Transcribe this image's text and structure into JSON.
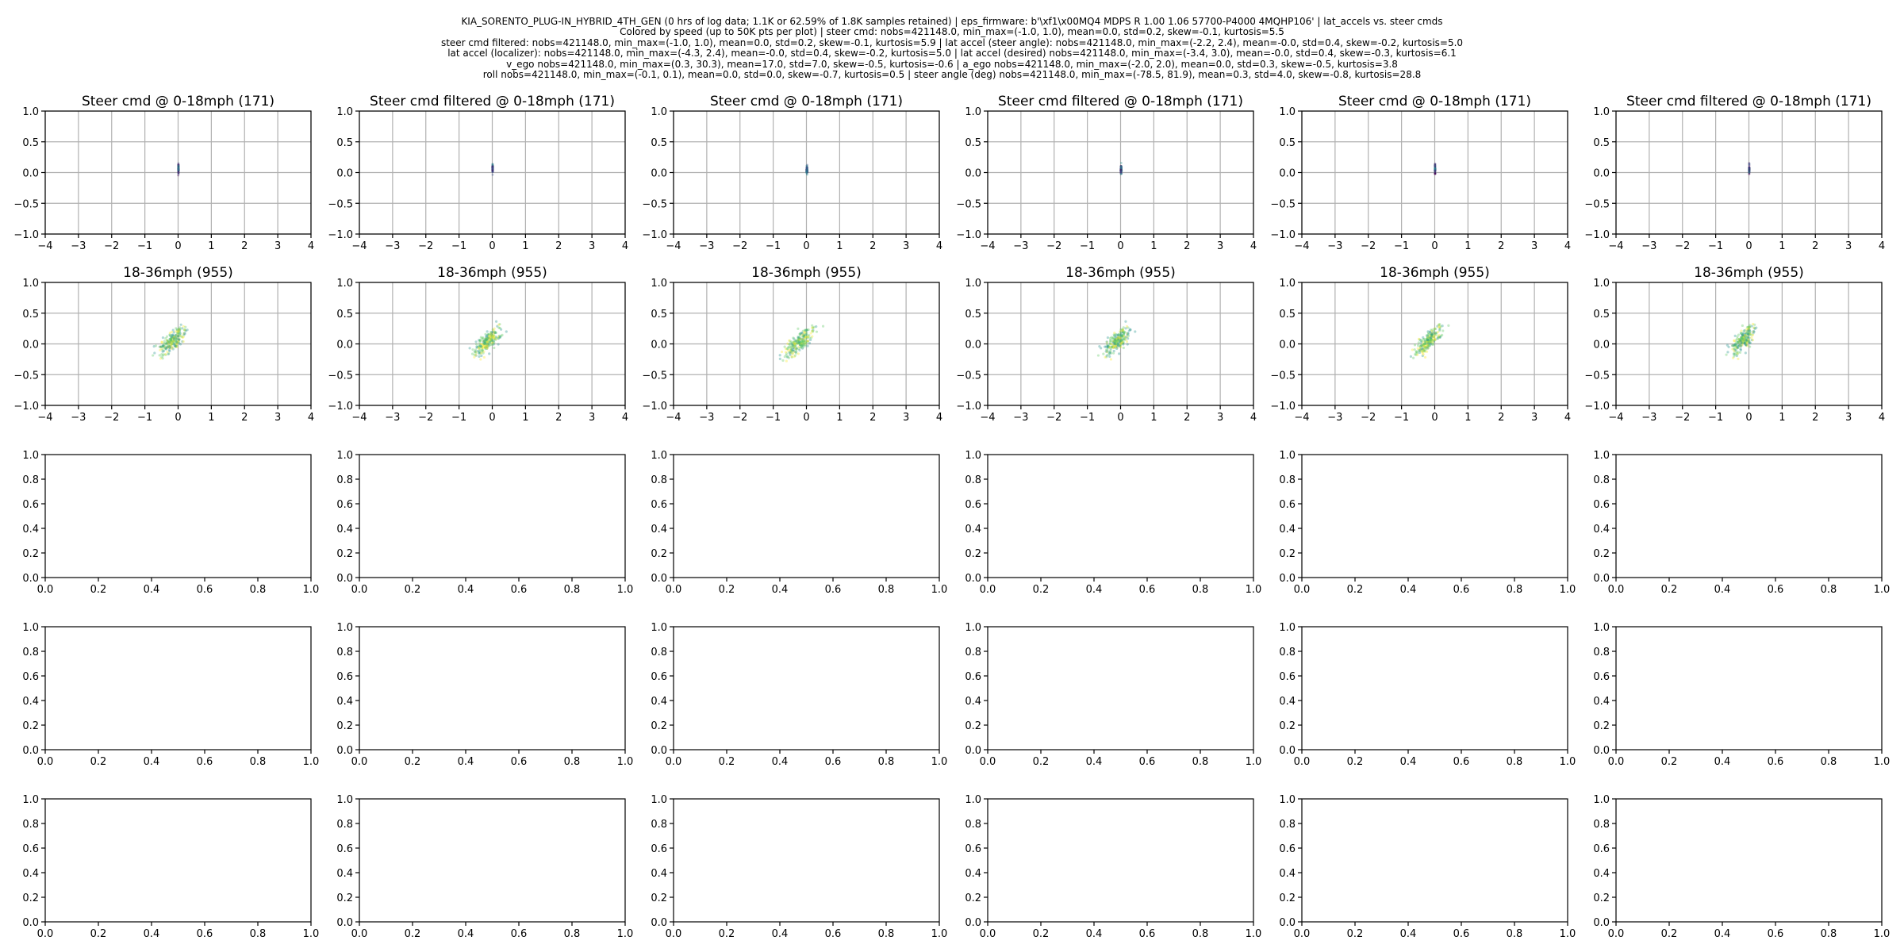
{
  "header_lines": [
    "KIA_SORENTO_PLUG-IN_HYBRID_4TH_GEN (0 hrs of log data; 1.1K or 62.59% of 1.8K samples retained) | eps_firmware: b'\\xf1\\x00MQ4 MDPS R 1.00 1.06 57700-P4000 4MQHP106' | lat_accels vs. steer cmds",
    "Colored by  speed (up to 50K pts per plot) | steer cmd: nobs=421148.0, min_max=(-1.0, 1.0), mean=0.0, std=0.2, skew=-0.1, kurtosis=5.5",
    "steer cmd filtered: nobs=421148.0, min_max=(-1.0, 1.0), mean=0.0, std=0.2, skew=-0.1, kurtosis=5.9 | lat accel (steer angle): nobs=421148.0, min_max=(-2.2, 2.4), mean=-0.0, std=0.4, skew=-0.2, kurtosis=5.0",
    "lat accel (localizer): nobs=421148.0, min_max=(-4.3, 2.4), mean=-0.0, std=0.4, skew=-0.2, kurtosis=5.0 | lat accel (desired) nobs=421148.0, min_max=(-3.4, 3.0), mean=-0.0, std=0.4, skew=-0.3, kurtosis=6.1",
    "v_ego nobs=421148.0, min_max=(0.3, 30.3), mean=17.0, std=7.0, skew=-0.5, kurtosis=-0.6 | a_ego nobs=421148.0, min_max=(-2.0, 2.0), mean=0.0, std=0.3, skew=-0.5, kurtosis=3.8",
    "roll nobs=421148.0, min_max=(-0.1, 0.1), mean=0.0, std=0.0, skew=-0.7, kurtosis=0.5 | steer angle (deg) nobs=421148.0, min_max=(-78.5, 81.9), mean=0.3, std=4.0, skew=-0.8, kurtosis=28.8"
  ],
  "colors": {
    "grid": "#b0b0b0",
    "axis": "#000000",
    "colormap": [
      "#440154",
      "#3b528b",
      "#21918c",
      "#5ec962",
      "#fde725"
    ]
  },
  "chart_data": {
    "type": "scatter",
    "grid_columns": 6,
    "grid_rows": 5,
    "data_rows": [
      {
        "row_type": "data",
        "xlim": [
          -4,
          4
        ],
        "ylim": [
          -1.0,
          1.0
        ],
        "grid": true,
        "x_ticks": [
          "−4",
          "−3",
          "−2",
          "−1",
          "0",
          "1",
          "2",
          "3",
          "4"
        ],
        "y_ticks": [
          "1.0",
          "0.5",
          "0.0",
          "−0.5",
          "−1.0"
        ],
        "titles": [
          "Steer cmd @ 0-18mph (171)",
          "Steer cmd filtered @ 0-18mph (171)",
          "Steer cmd @ 0-18mph (171)",
          "Steer cmd filtered @ 0-18mph (171)",
          "Steer cmd @ 0-18mph (171)",
          "Steer cmd filtered @ 0-18mph (171)"
        ],
        "clusters": [
          {
            "x": [
              0.0,
              0.02
            ],
            "y": [
              -0.1,
              0.22
            ]
          },
          {
            "x": [
              0.0,
              0.02
            ],
            "y": [
              -0.08,
              0.22
            ]
          },
          {
            "x": [
              -0.02,
              0.05
            ],
            "y": [
              -0.12,
              0.2
            ]
          },
          {
            "x": [
              -0.02,
              0.05
            ],
            "y": [
              -0.1,
              0.2
            ]
          },
          {
            "x": [
              0.0,
              0.02
            ],
            "y": [
              -0.1,
              0.22
            ]
          },
          {
            "x": [
              0.0,
              0.02
            ],
            "y": [
              -0.1,
              0.2
            ]
          }
        ]
      },
      {
        "row_type": "data",
        "xlim": [
          -4,
          4
        ],
        "ylim": [
          -1.0,
          1.0
        ],
        "grid": true,
        "x_ticks": [
          "−4",
          "−3",
          "−2",
          "−1",
          "0",
          "1",
          "2",
          "3",
          "4"
        ],
        "y_ticks": [
          "1.0",
          "0.5",
          "0.0",
          "−0.5",
          "−1.0"
        ],
        "titles": [
          "18-36mph (955)",
          "18-36mph (955)",
          "18-36mph (955)",
          "18-36mph (955)",
          "18-36mph (955)",
          "18-36mph (955)"
        ],
        "clusters": [
          {
            "x": [
              -0.9,
              0.6
            ],
            "y": [
              -0.4,
              0.5
            ]
          },
          {
            "x": [
              -0.9,
              0.6
            ],
            "y": [
              -0.4,
              0.5
            ]
          },
          {
            "x": [
              -1.0,
              0.6
            ],
            "y": [
              -0.45,
              0.5
            ]
          },
          {
            "x": [
              -0.8,
              0.6
            ],
            "y": [
              -0.4,
              0.5
            ]
          },
          {
            "x": [
              -0.9,
              0.5
            ],
            "y": [
              -0.4,
              0.5
            ]
          },
          {
            "x": [
              -0.8,
              0.5
            ],
            "y": [
              -0.4,
              0.55
            ]
          }
        ]
      },
      {
        "row_type": "empty",
        "xlim": [
          0,
          1
        ],
        "ylim": [
          0,
          1
        ],
        "grid": false,
        "x_ticks": [
          "0.0",
          "0.2",
          "0.4",
          "0.6",
          "0.8",
          "1.0"
        ],
        "y_ticks": [
          "1.0",
          "0.8",
          "0.6",
          "0.4",
          "0.2",
          "0.0"
        ]
      },
      {
        "row_type": "empty",
        "xlim": [
          0,
          1
        ],
        "ylim": [
          0,
          1
        ],
        "grid": false,
        "x_ticks": [
          "0.0",
          "0.2",
          "0.4",
          "0.6",
          "0.8",
          "1.0"
        ],
        "y_ticks": [
          "1.0",
          "0.8",
          "0.6",
          "0.4",
          "0.2",
          "0.0"
        ]
      },
      {
        "row_type": "empty",
        "xlim": [
          0,
          1
        ],
        "ylim": [
          0,
          1
        ],
        "grid": false,
        "x_ticks": [
          "0.0",
          "0.2",
          "0.4",
          "0.6",
          "0.8",
          "1.0"
        ],
        "y_ticks": [
          "1.0",
          "0.8",
          "0.6",
          "0.4",
          "0.2",
          "0.0"
        ]
      }
    ]
  }
}
